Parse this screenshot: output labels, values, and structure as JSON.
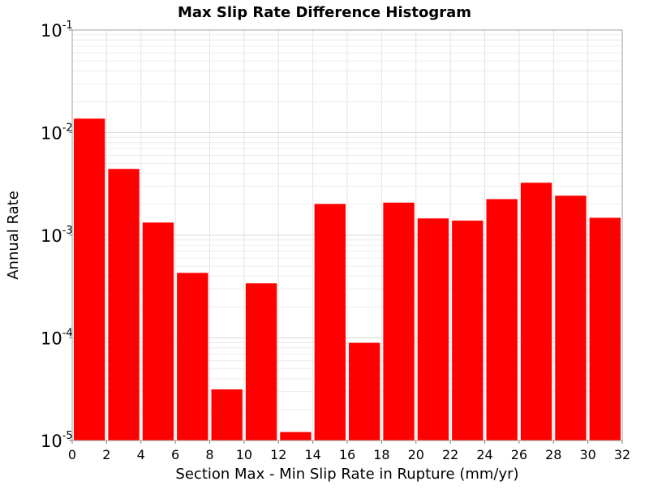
{
  "chart_data": {
    "type": "bar",
    "title": "Max Slip Rate Difference Histogram",
    "xlabel": "Section Max - Min Slip Rate in Rupture (mm/yr)",
    "ylabel": "Annual Rate",
    "xlim": [
      0,
      32
    ],
    "ylim": [
      1e-05,
      0.1
    ],
    "yscale": "log",
    "grid": true,
    "bar_color": "#ff0000",
    "bin_width": 2,
    "x_ticks": [
      "0",
      "2",
      "4",
      "6",
      "8",
      "10",
      "12",
      "14",
      "16",
      "18",
      "20",
      "22",
      "24",
      "26",
      "28",
      "30",
      "32"
    ],
    "y_ticks": [
      {
        "base": "10",
        "exp": "-5",
        "value": 1e-05
      },
      {
        "base": "10",
        "exp": "-4",
        "value": 0.0001
      },
      {
        "base": "10",
        "exp": "-3",
        "value": 0.001
      },
      {
        "base": "10",
        "exp": "-2",
        "value": 0.01
      },
      {
        "base": "10",
        "exp": "-1",
        "value": 0.1
      }
    ],
    "bins": [
      {
        "x_start": 0,
        "x_end": 2,
        "value": 0.0137
      },
      {
        "x_start": 2,
        "x_end": 4,
        "value": 0.00443
      },
      {
        "x_start": 4,
        "x_end": 6,
        "value": 0.00133
      },
      {
        "x_start": 6,
        "x_end": 8,
        "value": 0.00043
      },
      {
        "x_start": 8,
        "x_end": 10,
        "value": 3.15e-05
      },
      {
        "x_start": 10,
        "x_end": 12,
        "value": 0.00034
      },
      {
        "x_start": 12,
        "x_end": 14,
        "value": 1.21e-05
      },
      {
        "x_start": 14,
        "x_end": 16,
        "value": 0.00202
      },
      {
        "x_start": 16,
        "x_end": 18,
        "value": 8.95e-05
      },
      {
        "x_start": 18,
        "x_end": 20,
        "value": 0.00208
      },
      {
        "x_start": 20,
        "x_end": 22,
        "value": 0.00146
      },
      {
        "x_start": 22,
        "x_end": 24,
        "value": 0.00139
      },
      {
        "x_start": 24,
        "x_end": 26,
        "value": 0.00225
      },
      {
        "x_start": 26,
        "x_end": 28,
        "value": 0.00325
      },
      {
        "x_start": 28,
        "x_end": 30,
        "value": 0.00243
      },
      {
        "x_start": 30,
        "x_end": 32,
        "value": 0.00148
      }
    ]
  }
}
